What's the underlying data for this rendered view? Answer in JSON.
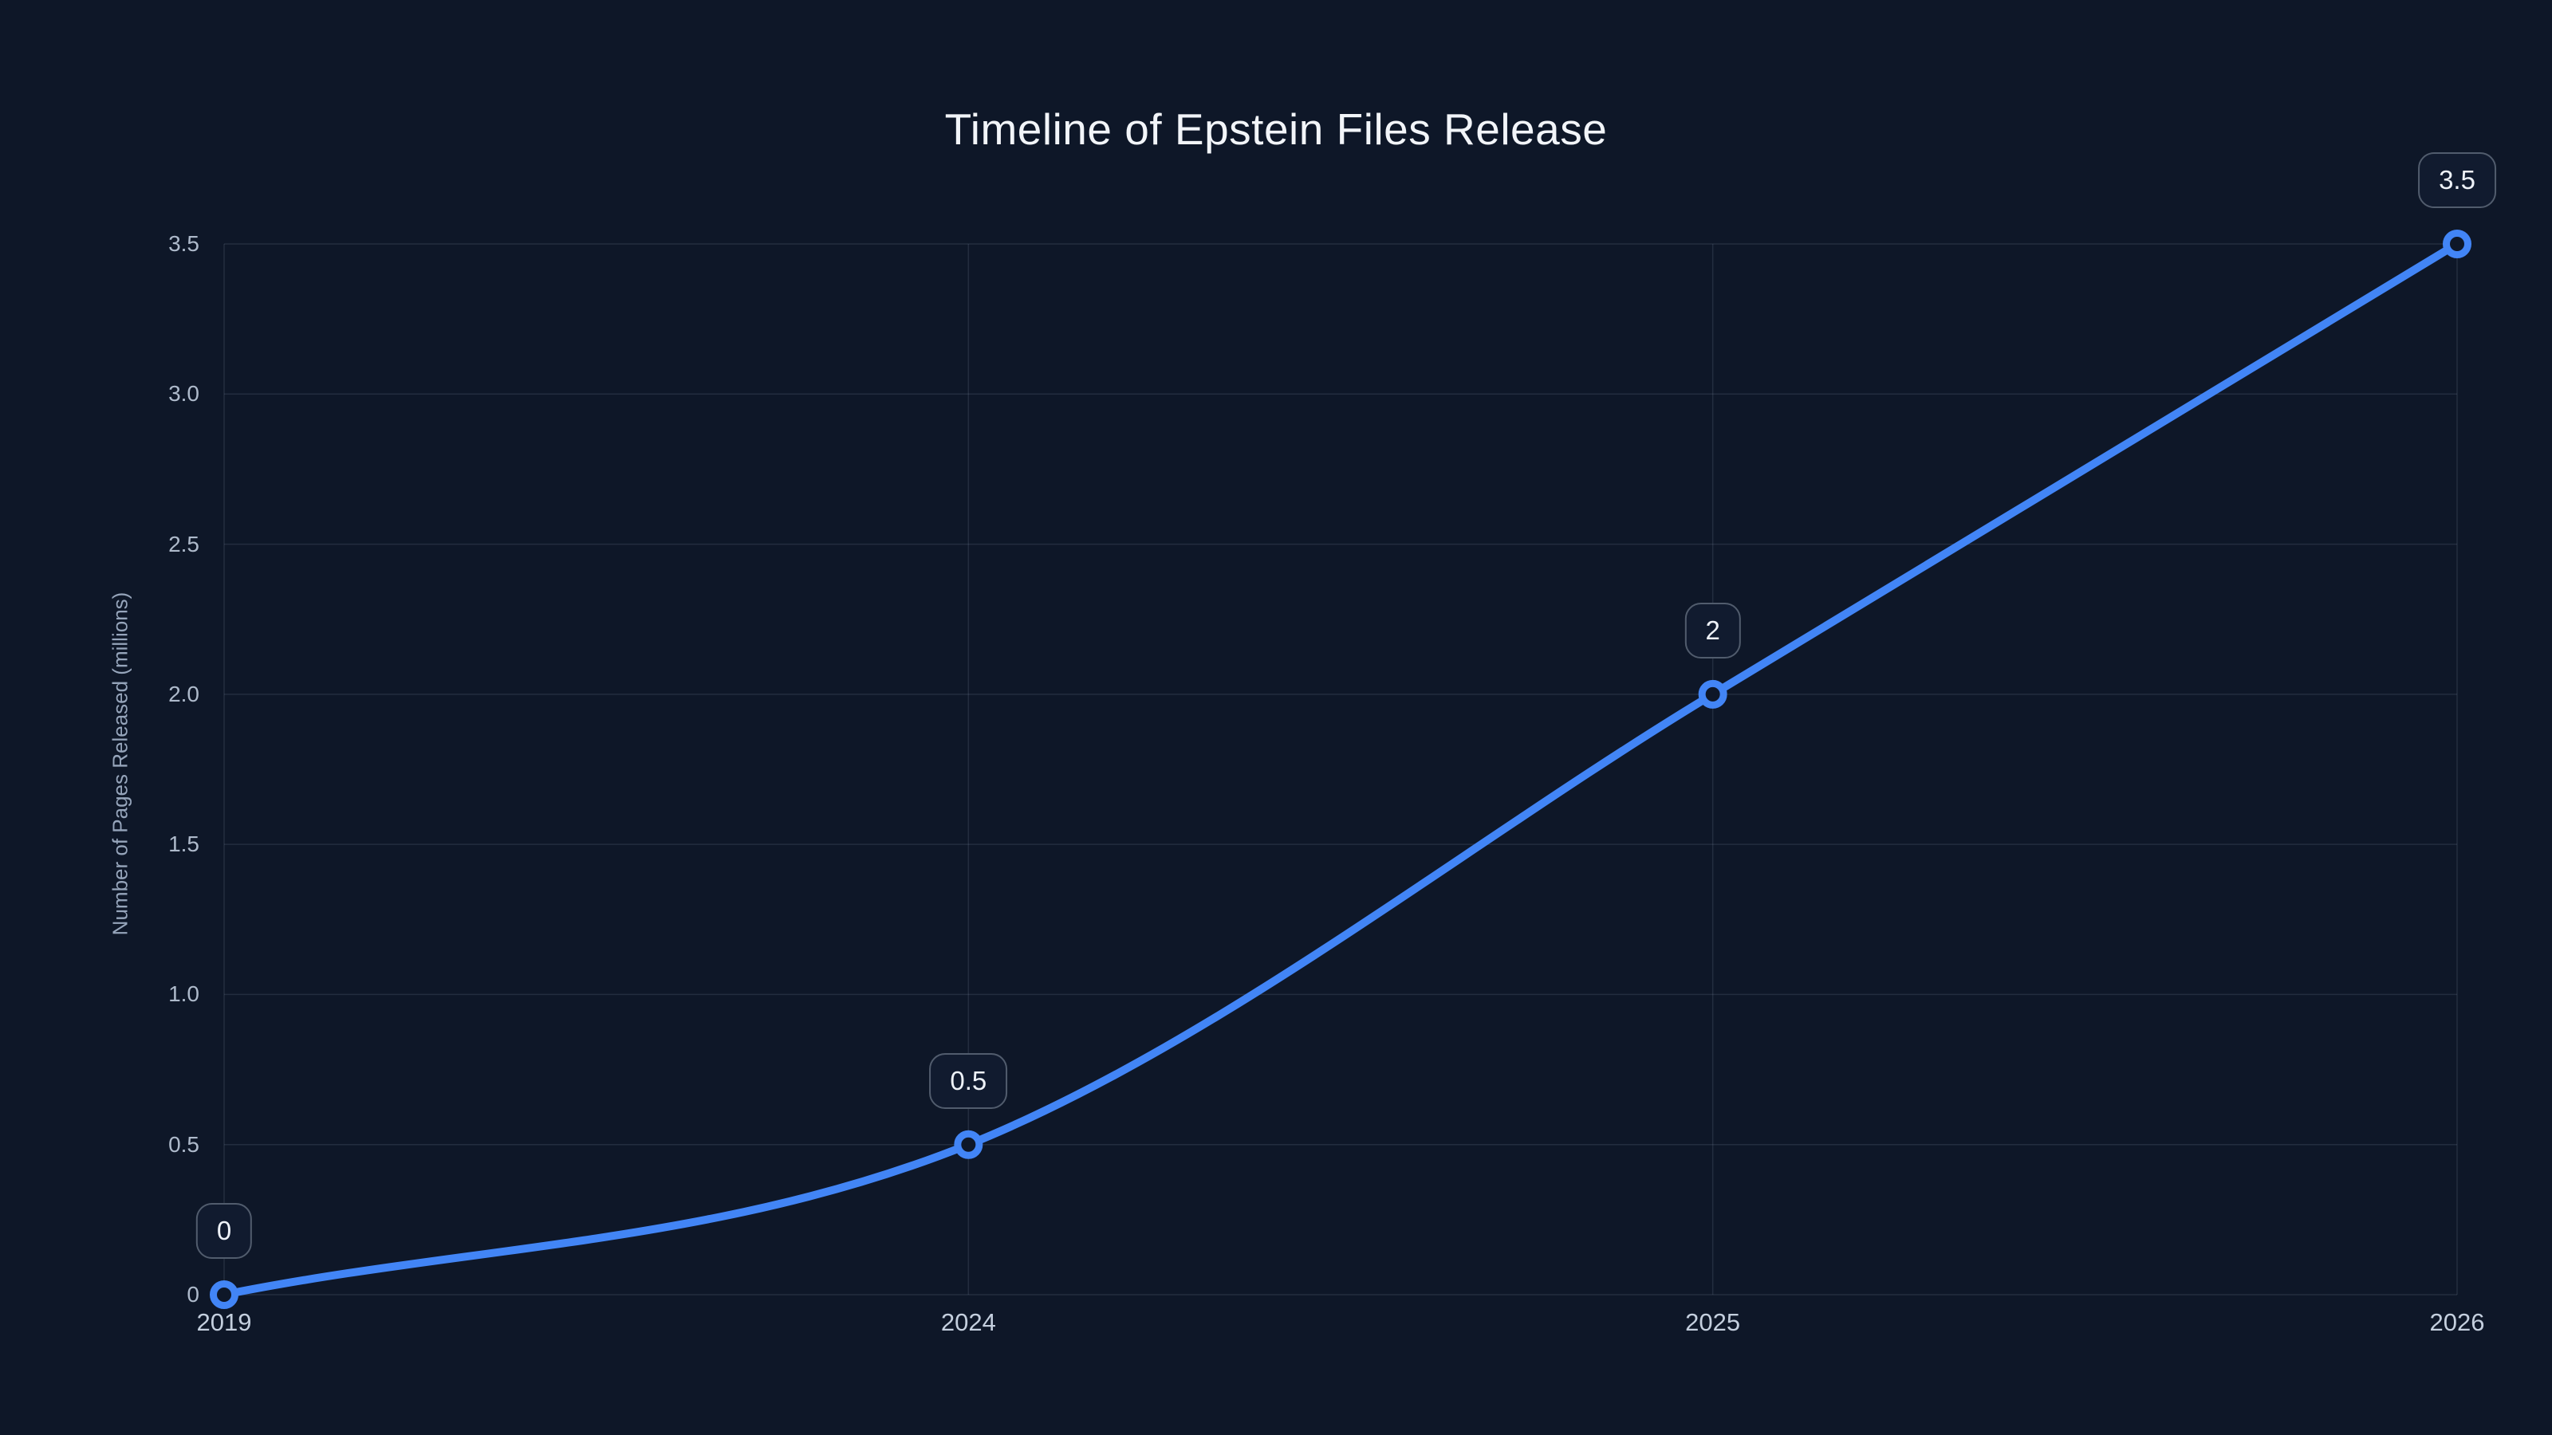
{
  "header": {
    "title": "Timeline of Epstein Files Release"
  },
  "colors": {
    "background": "#0e1728",
    "line": "#4285f6",
    "grid": "rgba(148,163,184,0.16)",
    "marker_fill": "#0e1728",
    "badge_background": "#111b2f",
    "badge_border": "#515c6d",
    "title_text": "#f2f5f9",
    "tick_text": "#aebacb"
  },
  "chart_data": {
    "type": "line",
    "title": "Timeline of Epstein Files Release",
    "categories": [
      "2019",
      "2024",
      "2025",
      "2026"
    ],
    "series": [
      {
        "name": "Number of Pages Released (millions)",
        "values": [
          0,
          0.5,
          2,
          3.5
        ]
      }
    ],
    "point_labels": [
      "0",
      "0.5",
      "2",
      "3.5"
    ],
    "xlabel": "",
    "ylabel": "Number of Pages Released (millions)",
    "ylim": [
      0,
      3.5
    ],
    "yticks": [
      0,
      0.5,
      1,
      1.5,
      2,
      2.5,
      3,
      3.5
    ],
    "ytick_labels": [
      "0",
      "0.5",
      "1.0",
      "1.5",
      "2.0",
      "2.5",
      "3.0",
      "3.5"
    ],
    "grid": true,
    "legend": "none",
    "smooth": true,
    "marker_style": "open-circle"
  }
}
